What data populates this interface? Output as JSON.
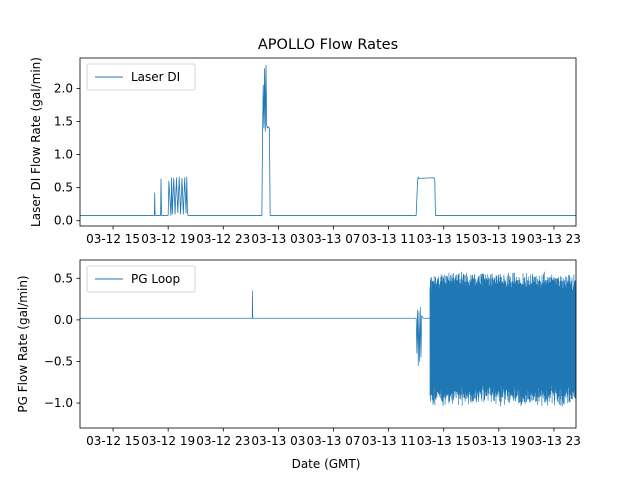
{
  "chart_data": [
    {
      "type": "line",
      "title": "APOLLO Flow Rates",
      "xlabel": "",
      "ylabel": "Laser DI Flow Rate (gal/min)",
      "x_unit": "hours since 03-12 00:00 GMT",
      "xlim": [
        12.6,
        48.6
      ],
      "ylim": [
        -0.08,
        2.46
      ],
      "xtick_values": [
        15,
        19,
        23,
        27,
        31,
        35,
        39,
        43,
        47
      ],
      "xtick_labels": [
        "03-12 15",
        "03-12 19",
        "03-12 23",
        "03-13 03",
        "03-13 07",
        "03-13 11",
        "03-13 15",
        "03-13 19",
        "03-13 23"
      ],
      "ytick_values": [
        0.0,
        0.5,
        1.0,
        1.5,
        2.0
      ],
      "ytick_labels": [
        "0.0",
        "0.5",
        "1.0",
        "1.5",
        "2.0"
      ],
      "legend": {
        "entries": [
          "Laser DI"
        ],
        "position": "upper-left"
      },
      "color": "#1f77b4",
      "series": [
        {
          "name": "Laser DI",
          "x": [
            12.6,
            18.0,
            18.02,
            18.05,
            18.1,
            18.45,
            18.48,
            18.52,
            18.57,
            19.0,
            19.05,
            19.2,
            19.25,
            19.3,
            19.4,
            19.5,
            19.6,
            19.7,
            19.8,
            19.9,
            20.0,
            20.1,
            20.2,
            20.3,
            20.35,
            20.4,
            20.45,
            25.8,
            25.85,
            25.9,
            25.95,
            26.0,
            26.05,
            26.1,
            26.15,
            26.2,
            26.25,
            26.35,
            26.4,
            26.45,
            26.5,
            37.0,
            37.1,
            37.15,
            37.2,
            38.3,
            38.35,
            38.4,
            48.6
          ],
          "y": [
            0.08,
            0.08,
            0.42,
            0.08,
            0.08,
            0.08,
            0.63,
            0.08,
            0.08,
            0.08,
            0.6,
            0.08,
            0.65,
            0.1,
            0.64,
            0.1,
            0.65,
            0.12,
            0.66,
            0.1,
            0.64,
            0.1,
            0.65,
            0.12,
            0.66,
            0.1,
            0.08,
            0.08,
            1.3,
            2.05,
            1.4,
            2.3,
            1.35,
            2.35,
            1.45,
            1.4,
            1.42,
            1.4,
            0.08,
            0.08,
            0.08,
            0.08,
            0.6,
            0.66,
            0.64,
            0.65,
            0.62,
            0.08,
            0.08
          ]
        }
      ]
    },
    {
      "type": "line",
      "title": "",
      "xlabel": "Date (GMT)",
      "ylabel": "PG Flow Rate (gal/min)",
      "x_unit": "hours since 03-12 00:00 GMT",
      "xlim": [
        12.6,
        48.6
      ],
      "ylim": [
        -1.3,
        0.72
      ],
      "xtick_values": [
        15,
        19,
        23,
        27,
        31,
        35,
        39,
        43,
        47
      ],
      "xtick_labels": [
        "03-12 15",
        "03-12 19",
        "03-12 23",
        "03-13 03",
        "03-13 07",
        "03-13 11",
        "03-13 15",
        "03-13 19",
        "03-13 23"
      ],
      "ytick_values": [
        0.5,
        0.0,
        -0.5,
        -1.0
      ],
      "ytick_labels": [
        "0.5",
        "0.0",
        "−0.5",
        "−1.0"
      ],
      "legend": {
        "entries": [
          "PG Loop"
        ],
        "position": "upper-left"
      },
      "color": "#1f77b4",
      "oscillation_region": {
        "start": 38.0,
        "end": 48.6,
        "upper_envelope": 0.58,
        "lower_envelope": -1.05,
        "note": "dense high-frequency oscillation"
      },
      "series": [
        {
          "name": "PG Loop",
          "x": [
            12.6,
            25.1,
            25.12,
            25.14,
            25.2,
            37.0,
            37.05,
            37.1,
            37.15,
            37.2,
            37.25,
            37.3,
            37.35,
            37.4,
            37.5,
            37.6,
            37.7,
            38.0
          ],
          "y": [
            0.02,
            0.02,
            0.35,
            0.02,
            0.02,
            0.02,
            -0.4,
            0.12,
            -0.55,
            0.1,
            -0.5,
            0.15,
            -0.45,
            0.05,
            0.02,
            0.02,
            0.02,
            0.02
          ]
        }
      ]
    }
  ]
}
